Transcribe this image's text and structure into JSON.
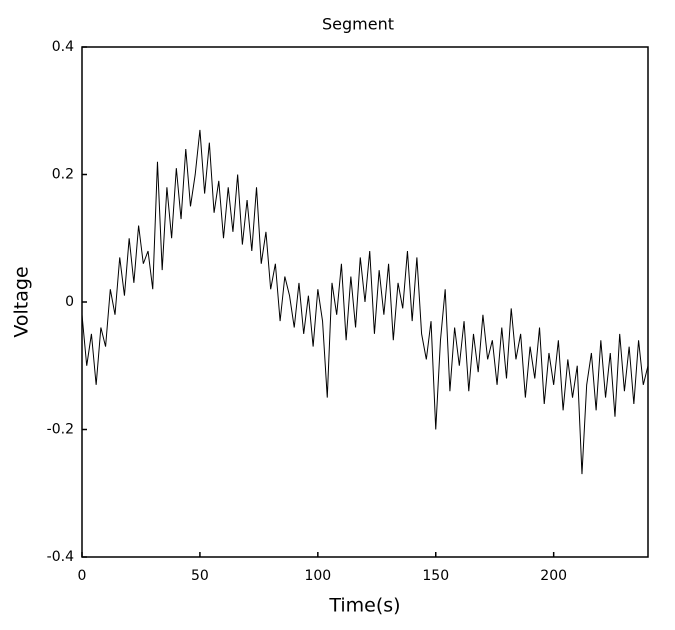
{
  "chart_data": {
    "type": "line",
    "title": "Segment",
    "xlabel": "Time(s)",
    "ylabel": "Voltage",
    "color": "#000000",
    "x": [
      0,
      2,
      4,
      6,
      8,
      10,
      12,
      14,
      16,
      18,
      20,
      22,
      24,
      26,
      28,
      30,
      32,
      34,
      36,
      38,
      40,
      42,
      44,
      46,
      48,
      50,
      52,
      54,
      56,
      58,
      60,
      62,
      64,
      66,
      68,
      70,
      72,
      74,
      76,
      78,
      80,
      82,
      84,
      86,
      88,
      90,
      92,
      94,
      96,
      98,
      100,
      102,
      104,
      106,
      108,
      110,
      112,
      114,
      116,
      118,
      120,
      122,
      124,
      126,
      128,
      130,
      132,
      134,
      136,
      138,
      140,
      142,
      144,
      146,
      148,
      150,
      152,
      154,
      156,
      158,
      160,
      162,
      164,
      166,
      168,
      170,
      172,
      174,
      176,
      178,
      180,
      182,
      184,
      186,
      188,
      190,
      192,
      194,
      196,
      198,
      200,
      202,
      204,
      206,
      208,
      210,
      212,
      214,
      216,
      218,
      220,
      222,
      224,
      226,
      228,
      230,
      232,
      234,
      236,
      238,
      240
    ],
    "values": [
      -0.02,
      -0.1,
      -0.05,
      -0.13,
      -0.04,
      -0.07,
      0.02,
      -0.02,
      0.07,
      0.01,
      0.1,
      0.03,
      0.12,
      0.06,
      0.08,
      0.02,
      0.22,
      0.05,
      0.18,
      0.1,
      0.21,
      0.13,
      0.24,
      0.15,
      0.2,
      0.27,
      0.17,
      0.25,
      0.14,
      0.19,
      0.1,
      0.18,
      0.11,
      0.2,
      0.09,
      0.16,
      0.08,
      0.18,
      0.06,
      0.11,
      0.02,
      0.06,
      -0.03,
      0.04,
      0.01,
      -0.04,
      0.03,
      -0.05,
      0.01,
      -0.07,
      0.02,
      -0.03,
      -0.15,
      0.03,
      -0.02,
      0.06,
      -0.06,
      0.04,
      -0.04,
      0.07,
      0.0,
      0.08,
      -0.05,
      0.05,
      -0.02,
      0.06,
      -0.06,
      0.03,
      -0.01,
      0.08,
      -0.03,
      0.07,
      -0.05,
      -0.09,
      -0.03,
      -0.2,
      -0.06,
      0.02,
      -0.14,
      -0.04,
      -0.1,
      -0.03,
      -0.14,
      -0.05,
      -0.11,
      -0.02,
      -0.09,
      -0.06,
      -0.13,
      -0.04,
      -0.12,
      -0.01,
      -0.09,
      -0.05,
      -0.15,
      -0.07,
      -0.12,
      -0.04,
      -0.16,
      -0.08,
      -0.13,
      -0.06,
      -0.17,
      -0.09,
      -0.15,
      -0.1,
      -0.27,
      -0.13,
      -0.08,
      -0.17,
      -0.06,
      -0.15,
      -0.08,
      -0.18,
      -0.05,
      -0.14,
      -0.07,
      -0.16,
      -0.06,
      -0.13,
      -0.1
    ],
    "xlim": [
      0,
      240
    ],
    "ylim": [
      -0.4,
      0.4
    ],
    "xticks": [
      0,
      50,
      100,
      150,
      200
    ],
    "yticks": [
      -0.4,
      -0.2,
      0,
      0.2,
      0.4
    ]
  }
}
